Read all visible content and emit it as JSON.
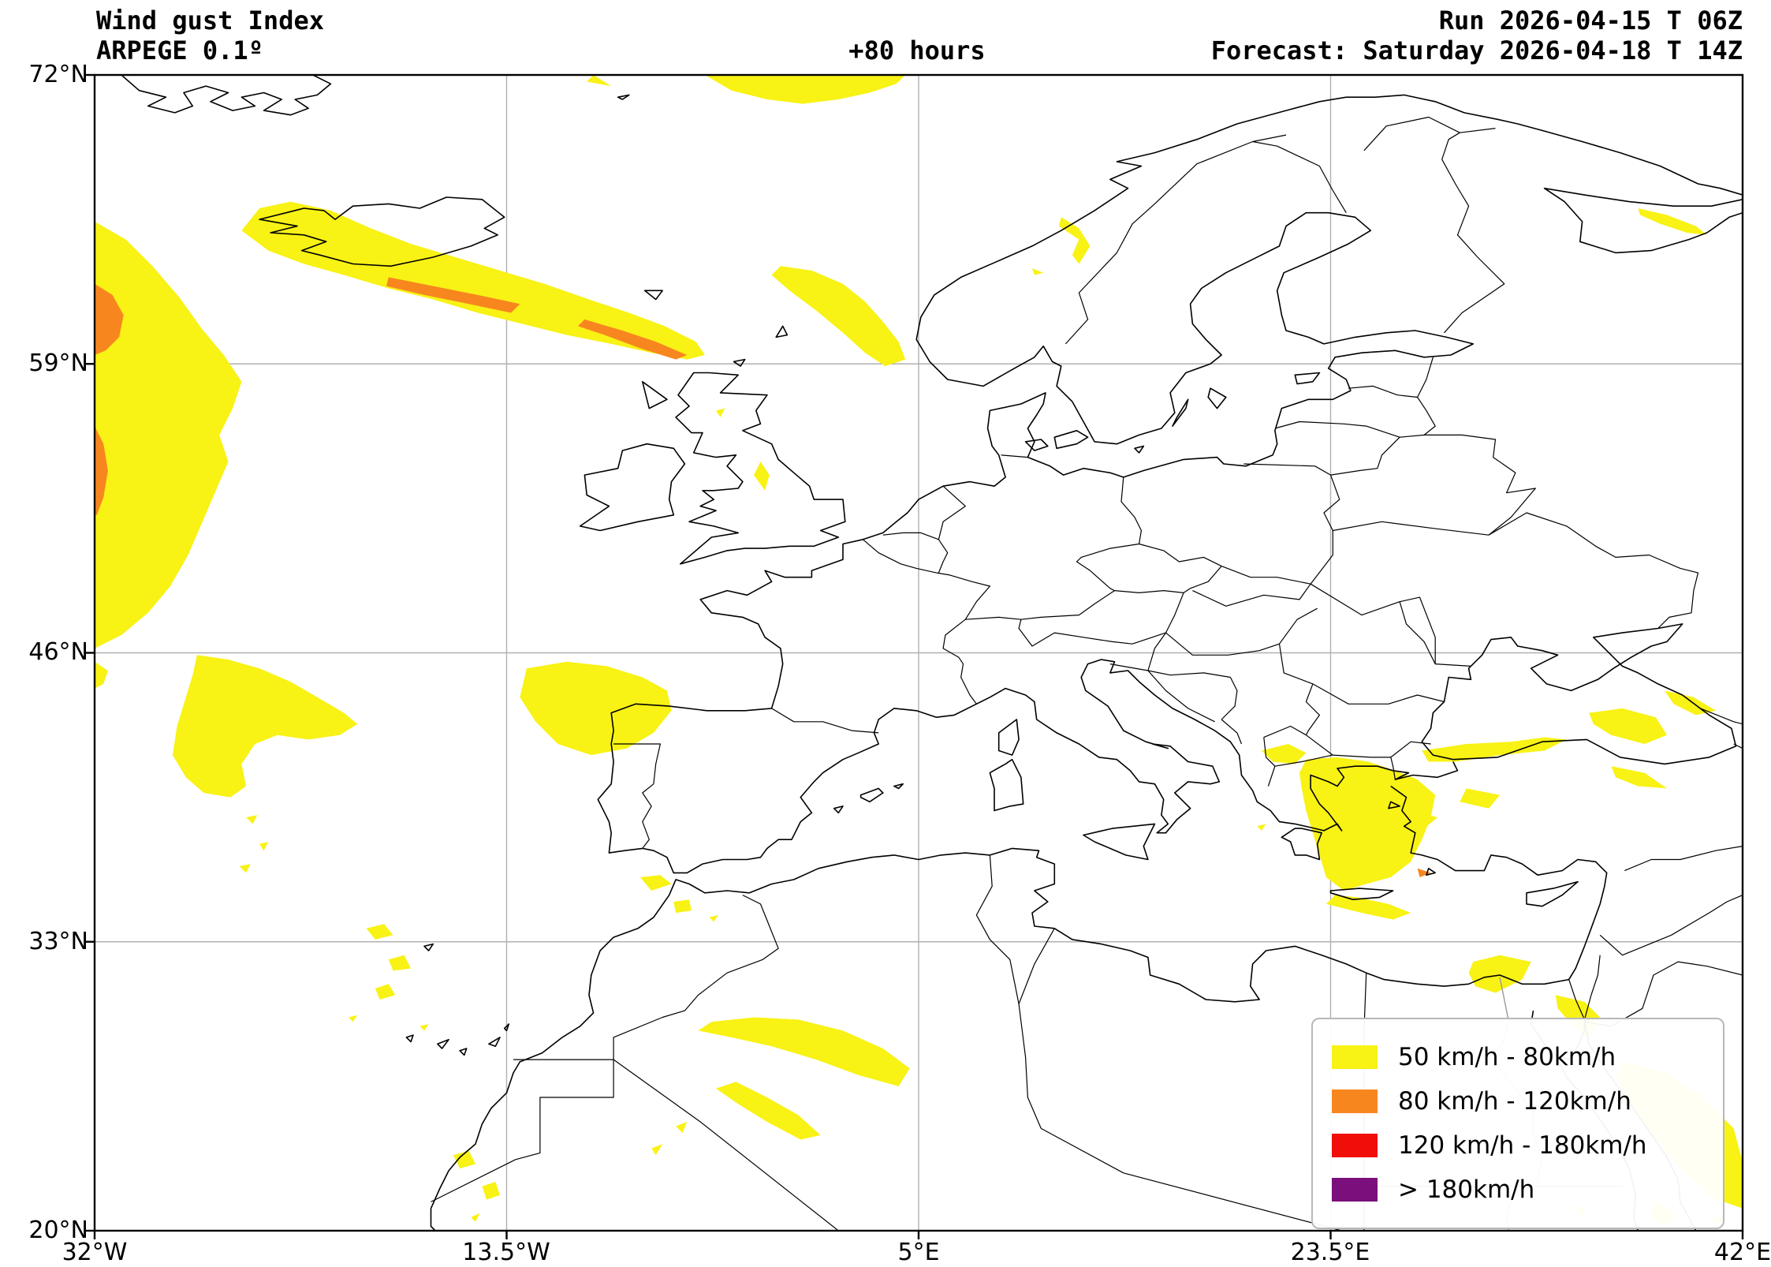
{
  "header": {
    "product": "Wind gust Index",
    "model": "ARPEGE 0.1º",
    "lead_time": "+80 hours",
    "run": "Run 2026-04-15 T 06Z",
    "forecast": "Forecast: Saturday 2026-04-18 T 14Z"
  },
  "axes": {
    "lat_ticks": [
      "72°N",
      "59°N",
      "46°N",
      "33°N",
      "20°N"
    ],
    "lon_ticks": [
      "32°W",
      "13.5°W",
      "5°E",
      "23.5°E",
      "42°E"
    ],
    "lat_values": [
      72,
      59,
      46,
      33,
      20
    ],
    "lon_values": [
      -32,
      -13.5,
      5,
      23.5,
      42
    ]
  },
  "legend": {
    "items": [
      {
        "label": "50 km/h - 80km/h",
        "color": "#F8F215"
      },
      {
        "label": "80 km/h - 120km/h",
        "color": "#F8861F"
      },
      {
        "label": "120 km/h - 180km/h",
        "color": "#F10D08"
      },
      {
        "label": "> 180km/h",
        "color": "#7B0F7B"
      }
    ]
  },
  "colors": {
    "grid": "#b0b0b0",
    "coastline": "#000000",
    "river": "#9a9a9a",
    "frame": "#000000",
    "background": "#ffffff"
  }
}
